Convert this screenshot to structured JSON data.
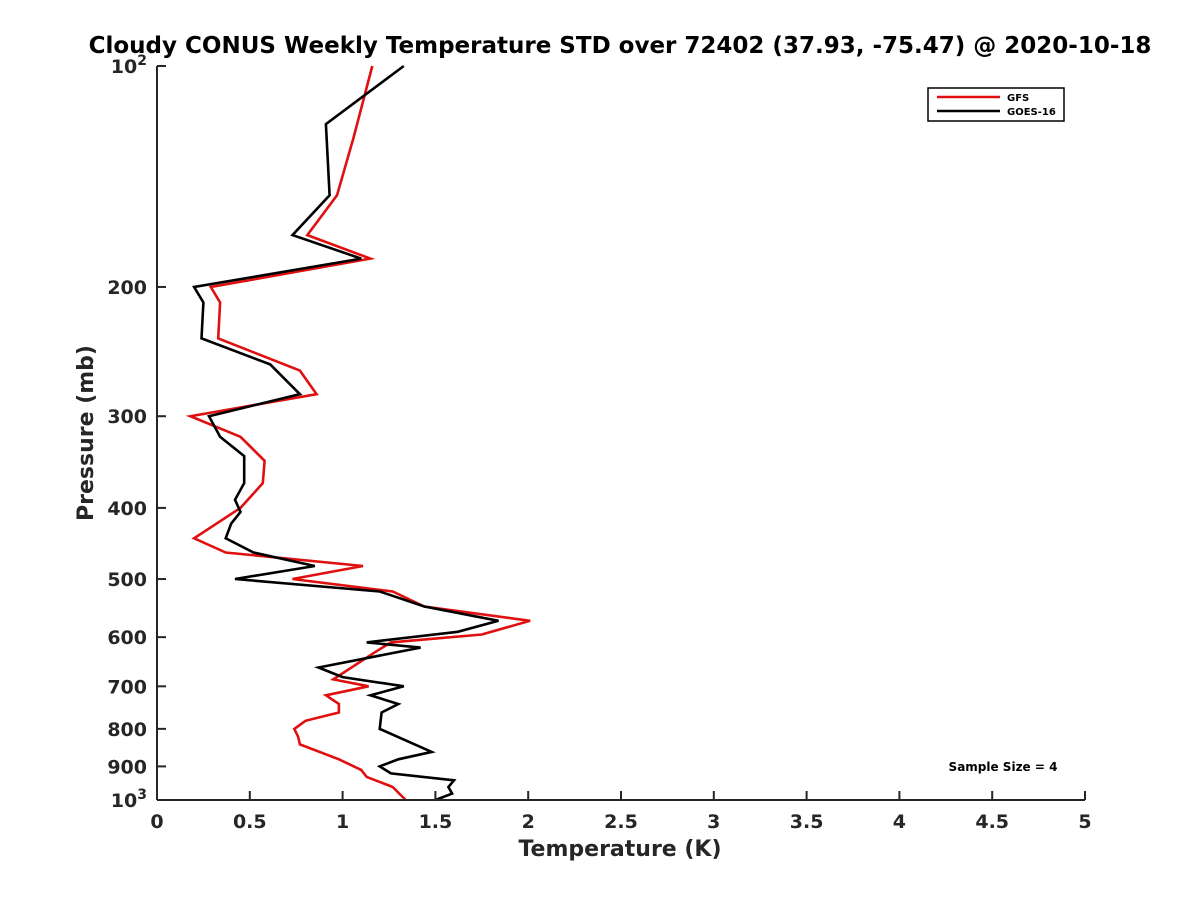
{
  "chart_data": {
    "type": "line",
    "title": "Cloudy CONUS Weekly Temperature STD over 72402 (37.93, -75.47) @ 2020-10-18",
    "xlabel": "Temperature (K)",
    "ylabel": "Pressure (mb)",
    "xlim": [
      0,
      5
    ],
    "ylim": [
      100,
      1000
    ],
    "yscale": "log",
    "yreversed": true,
    "grid": false,
    "legend_position": "top-right",
    "x_ticks": [
      "0",
      "0.5",
      "1",
      "1.5",
      "2",
      "2.5",
      "3",
      "3.5",
      "4",
      "4.5",
      "5"
    ],
    "y_ticks": [
      {
        "value": 100,
        "base": "10",
        "exp": "2"
      },
      {
        "value": 200,
        "label": "200"
      },
      {
        "value": 300,
        "label": "300"
      },
      {
        "value": 400,
        "label": "400"
      },
      {
        "value": 500,
        "label": "500"
      },
      {
        "value": 600,
        "label": "600"
      },
      {
        "value": 700,
        "label": "700"
      },
      {
        "value": 800,
        "label": "800"
      },
      {
        "value": 900,
        "label": "900"
      },
      {
        "value": 1000,
        "base": "10",
        "exp": "3"
      }
    ],
    "annotation": "Sample Size = 4",
    "series": [
      {
        "name": "GFS",
        "color": "#e01010",
        "x": [
          1.16,
          1.06,
          0.97,
          0.81,
          1.15,
          0.29,
          0.34,
          0.33,
          0.77,
          0.86,
          0.18,
          0.45,
          0.58,
          0.57,
          0.45,
          0.2,
          0.37,
          1.11,
          0.73,
          1.27,
          1.44,
          2.01,
          1.75,
          1.26,
          1.17,
          0.95,
          1.14,
          0.91,
          0.98,
          0.98,
          0.8,
          0.74,
          0.76,
          0.77,
          0.98,
          1.1,
          1.13,
          1.27,
          1.34
        ],
        "y": [
          100,
          125,
          150,
          170,
          183,
          200,
          210,
          235,
          260,
          280,
          300,
          320,
          345,
          370,
          400,
          440,
          460,
          480,
          500,
          520,
          545,
          570,
          595,
          610,
          630,
          685,
          700,
          720,
          740,
          760,
          780,
          800,
          820,
          840,
          880,
          910,
          930,
          960,
          1000
        ]
      },
      {
        "name": "GOES-16",
        "color": "#000000",
        "x": [
          1.33,
          0.91,
          0.93,
          0.73,
          1.1,
          0.2,
          0.25,
          0.24,
          0.61,
          0.77,
          0.28,
          0.34,
          0.47,
          0.47,
          0.42,
          0.45,
          0.4,
          0.37,
          0.52,
          0.85,
          0.42,
          1.2,
          1.44,
          1.84,
          1.62,
          1.13,
          1.42,
          0.87,
          1.0,
          1.33,
          1.15,
          1.3,
          1.21,
          1.2,
          1.48,
          1.3,
          1.2,
          1.26,
          1.6,
          1.57,
          1.59,
          1.5
        ],
        "y": [
          100,
          120,
          150,
          170,
          183,
          200,
          210,
          235,
          255,
          280,
          300,
          320,
          340,
          370,
          390,
          405,
          420,
          440,
          460,
          480,
          500,
          520,
          545,
          570,
          590,
          610,
          620,
          660,
          680,
          700,
          720,
          740,
          760,
          800,
          860,
          880,
          900,
          920,
          940,
          960,
          980,
          1000
        ]
      }
    ]
  }
}
